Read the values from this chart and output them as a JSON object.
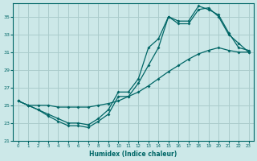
{
  "xlabel": "Humidex (Indice chaleur)",
  "bg_color": "#cce8e8",
  "grid_color": "#aacccc",
  "line_color": "#006666",
  "xlim": [
    -0.5,
    23.5
  ],
  "ylim": [
    21,
    36.5
  ],
  "yticks": [
    21,
    23,
    25,
    27,
    29,
    31,
    33,
    35
  ],
  "xticks": [
    0,
    1,
    2,
    3,
    4,
    5,
    6,
    7,
    8,
    9,
    10,
    11,
    12,
    13,
    14,
    15,
    16,
    17,
    18,
    19,
    20,
    21,
    22,
    23
  ],
  "line1_x": [
    0,
    1,
    2,
    3,
    4,
    5,
    6,
    7,
    8,
    9,
    10,
    11,
    12,
    13,
    14,
    15,
    16,
    17,
    18,
    19,
    20,
    21,
    22,
    23
  ],
  "line1_y": [
    25.5,
    25.0,
    24.5,
    24.0,
    23.5,
    23.0,
    23.0,
    22.8,
    23.5,
    24.5,
    26.5,
    26.5,
    28.0,
    31.5,
    32.5,
    35.0,
    34.5,
    34.5,
    36.2,
    35.8,
    35.2,
    33.2,
    31.5,
    31.2
  ],
  "line2_x": [
    0,
    1,
    2,
    3,
    4,
    5,
    6,
    7,
    8,
    9,
    10,
    11,
    12,
    13,
    14,
    15,
    16,
    17,
    18,
    19,
    20,
    21,
    22,
    23
  ],
  "line2_y": [
    25.5,
    25.0,
    24.5,
    23.8,
    23.2,
    22.7,
    22.7,
    22.5,
    23.2,
    24.0,
    26.0,
    26.0,
    27.5,
    29.5,
    31.5,
    35.0,
    34.2,
    34.2,
    35.8,
    36.0,
    35.0,
    33.0,
    32.0,
    31.0
  ],
  "line3_x": [
    0,
    1,
    2,
    3,
    4,
    5,
    6,
    7,
    8,
    9,
    10,
    11,
    12,
    13,
    14,
    15,
    16,
    17,
    18,
    19,
    20,
    21,
    22,
    23
  ],
  "line3_y": [
    25.5,
    25.0,
    25.0,
    25.0,
    24.8,
    24.8,
    24.8,
    24.8,
    25.0,
    25.2,
    25.5,
    26.0,
    26.5,
    27.2,
    28.0,
    28.8,
    29.5,
    30.2,
    30.8,
    31.2,
    31.5,
    31.2,
    31.0,
    31.0
  ]
}
